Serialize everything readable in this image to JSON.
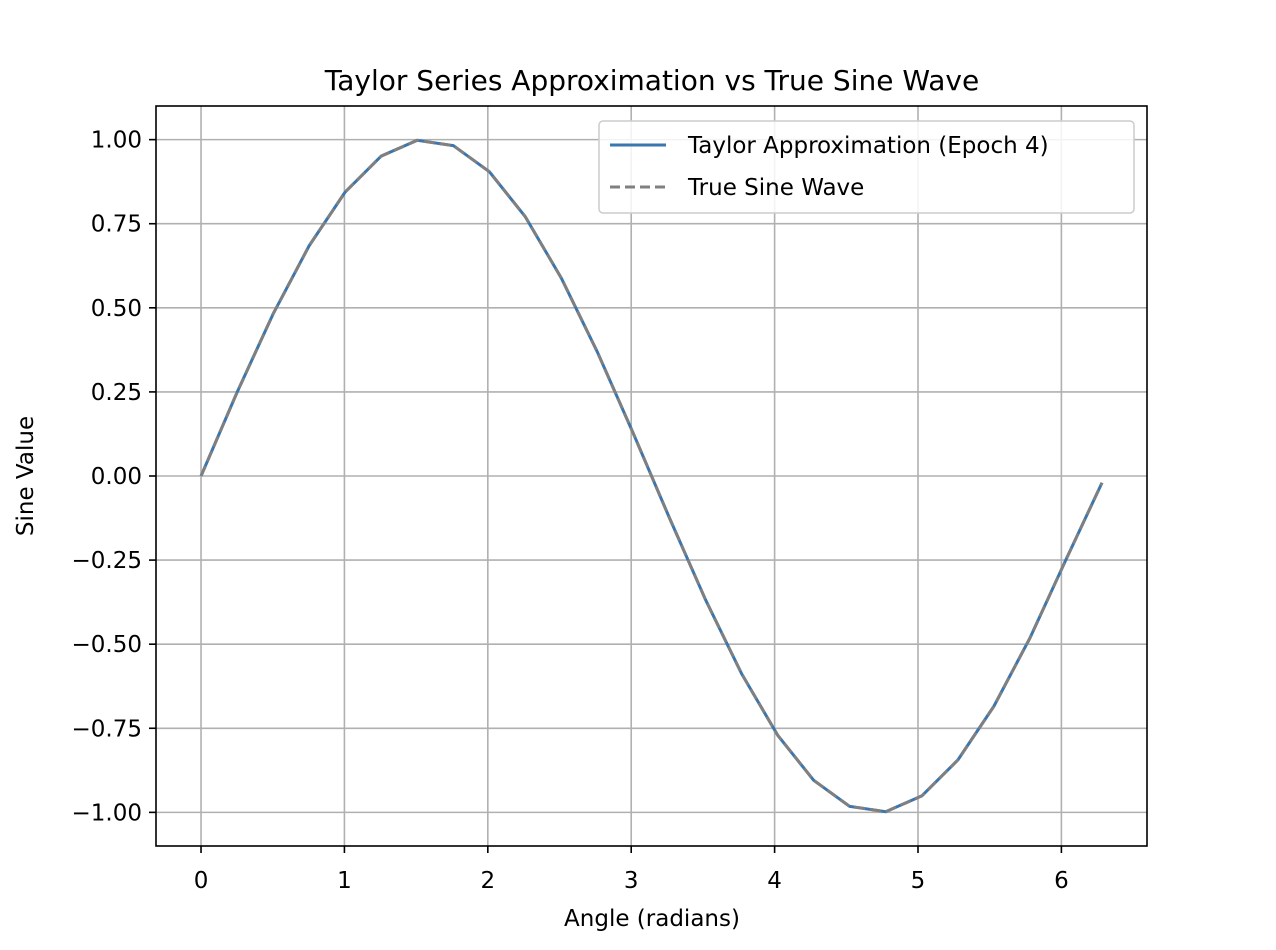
{
  "chart_data": {
    "type": "line",
    "title": "Taylor Series Approximation vs True Sine Wave",
    "xlabel": "Angle (radians)",
    "ylabel": "Sine Value",
    "xlim": [
      -0.314,
      6.597
    ],
    "ylim": [
      -1.1,
      1.1
    ],
    "x_ticks": [
      0,
      1,
      2,
      3,
      4,
      5,
      6
    ],
    "x_tick_labels": [
      "0",
      "1",
      "2",
      "3",
      "4",
      "5",
      "6"
    ],
    "y_ticks": [
      1.0,
      0.75,
      0.5,
      0.25,
      0.0,
      -0.25,
      -0.5,
      -0.75,
      -1.0
    ],
    "y_tick_labels": [
      "1.00",
      "0.75",
      "0.50",
      "0.25",
      "0.00",
      "−0.25",
      "−0.50",
      "−0.75",
      "−1.00"
    ],
    "grid": true,
    "legend_position": "top-right",
    "series": [
      {
        "name": "Taylor Approximation (Epoch 4)",
        "color": "#3a76b0",
        "style": "solid",
        "x": [
          0.0,
          0.2513,
          0.5027,
          0.754,
          1.0053,
          1.2566,
          1.508,
          1.7593,
          2.0106,
          2.2619,
          2.5133,
          2.7646,
          3.0159,
          3.2673,
          3.5186,
          3.7699,
          4.0212,
          4.2726,
          4.5239,
          4.7752,
          5.0265,
          5.2779,
          5.5292,
          5.7805,
          6.0319,
          6.2832
        ],
        "y": [
          0.0,
          0.2487,
          0.4818,
          0.6845,
          0.8443,
          0.9511,
          0.998,
          0.9823,
          0.9048,
          0.7705,
          0.5878,
          0.3681,
          0.1253,
          -0.1253,
          -0.3681,
          -0.5878,
          -0.7705,
          -0.9048,
          -0.9823,
          -0.998,
          -0.9511,
          -0.8443,
          -0.6845,
          -0.4818,
          -0.2487,
          -0.02
        ]
      },
      {
        "name": "True Sine Wave",
        "color": "#808080",
        "style": "dashed",
        "x": [
          0.0,
          0.2513,
          0.5027,
          0.754,
          1.0053,
          1.2566,
          1.508,
          1.7593,
          2.0106,
          2.2619,
          2.5133,
          2.7646,
          3.0159,
          3.2673,
          3.5186,
          3.7699,
          4.0212,
          4.2726,
          4.5239,
          4.7752,
          5.0265,
          5.2779,
          5.5292,
          5.7805,
          6.0319,
          6.2832
        ],
        "y": [
          0.0,
          0.2487,
          0.4818,
          0.6845,
          0.8443,
          0.9511,
          0.998,
          0.9823,
          0.9048,
          0.7705,
          0.5878,
          0.3681,
          0.1253,
          -0.1253,
          -0.3681,
          -0.5878,
          -0.7705,
          -0.9048,
          -0.9823,
          -0.998,
          -0.9511,
          -0.8443,
          -0.6845,
          -0.4818,
          -0.2487,
          -0.02
        ]
      }
    ]
  }
}
